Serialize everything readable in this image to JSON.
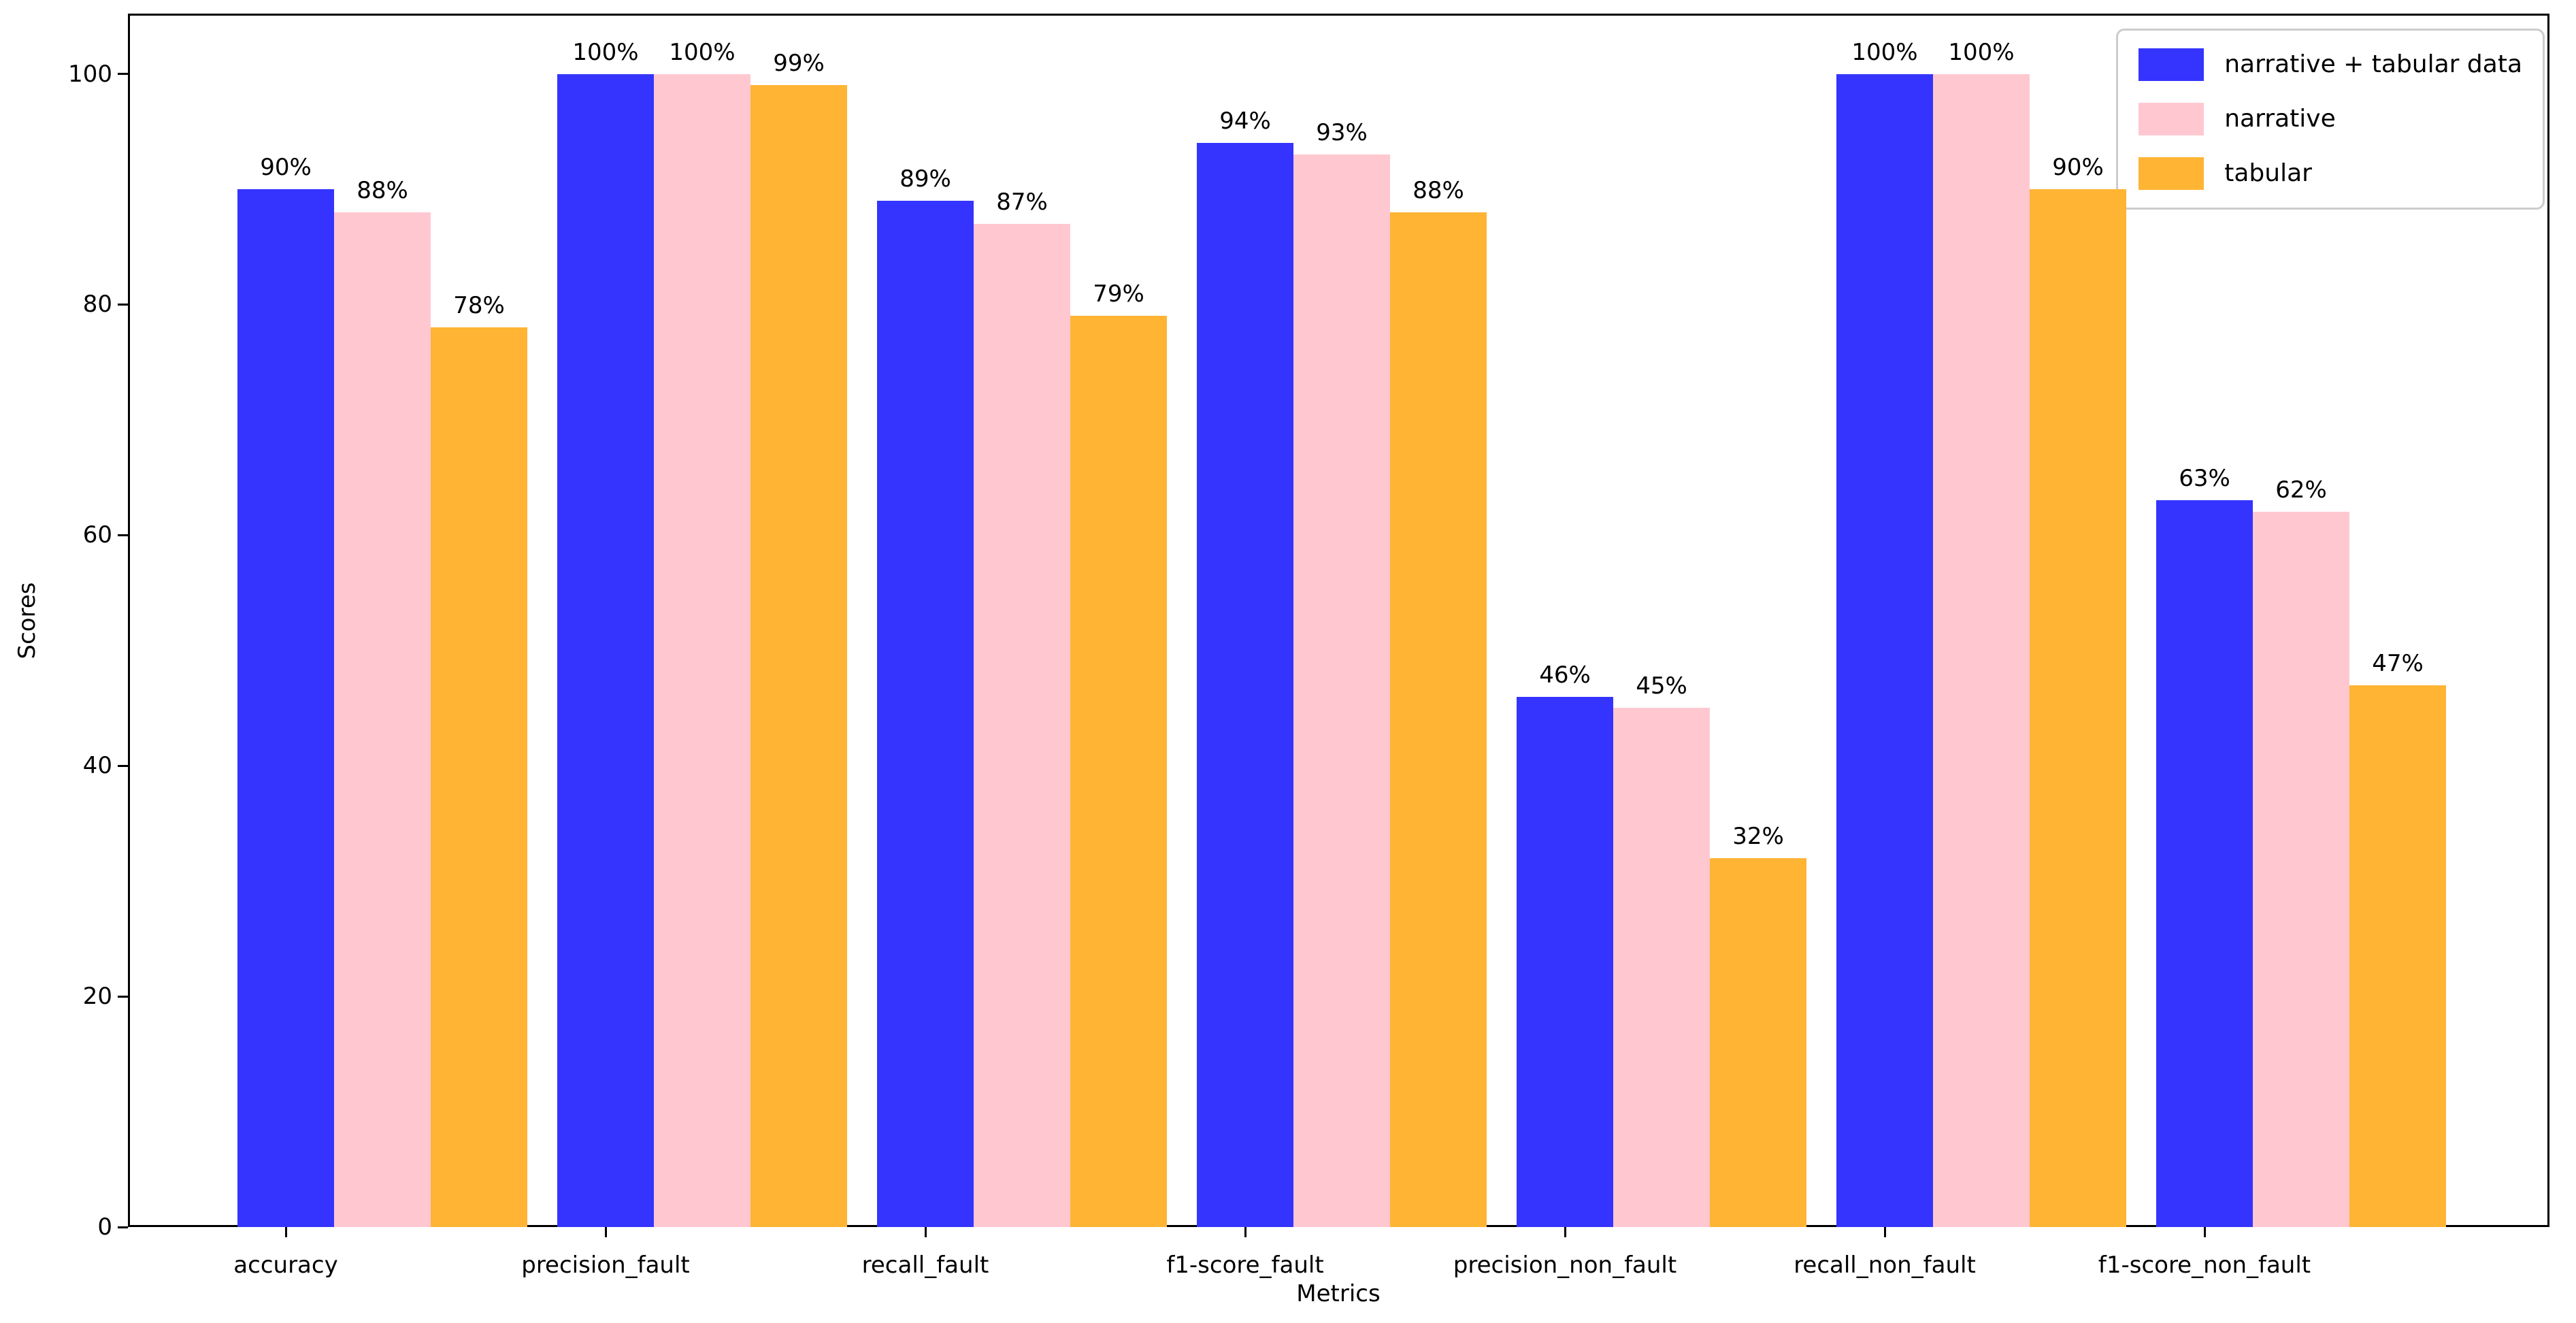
{
  "chart_data": {
    "type": "bar",
    "title": "",
    "xlabel": "Metrics",
    "ylabel": "Scores",
    "categories": [
      "accuracy",
      "precision_fault",
      "recall_fault",
      "f1-score_fault",
      "precision_non_fault",
      "recall_non_fault",
      "f1-score_non_fault"
    ],
    "series": [
      {
        "name": "narrative + tabular data",
        "color": "#3434fe",
        "values": [
          90,
          100,
          89,
          94,
          46,
          100,
          63
        ],
        "bar_labels": [
          "90%",
          "100%",
          "89%",
          "94%",
          "46%",
          "100%",
          "63%"
        ]
      },
      {
        "name": "narrative",
        "color": "#ffc8d1",
        "values": [
          88,
          100,
          87,
          93,
          45,
          100,
          62
        ],
        "bar_labels": [
          "88%",
          "100%",
          "87%",
          "93%",
          "45%",
          "100%",
          "62%"
        ]
      },
      {
        "name": "tabular",
        "color": "#ffb434",
        "values": [
          78,
          99,
          79,
          88,
          32,
          90,
          47
        ],
        "bar_labels": [
          "78%",
          "99%",
          "79%",
          "88%",
          "32%",
          "90%",
          "47%"
        ]
      }
    ],
    "yticks": [
      "0",
      "20",
      "40",
      "60",
      "80",
      "100"
    ],
    "ytick_values": [
      0,
      20,
      40,
      60,
      80,
      100
    ],
    "ylim": [
      0,
      105
    ],
    "grid": false,
    "legend_position": "upper right",
    "background_color": "#ffffff",
    "text_color": "#000000",
    "spine_color": "#000000"
  }
}
